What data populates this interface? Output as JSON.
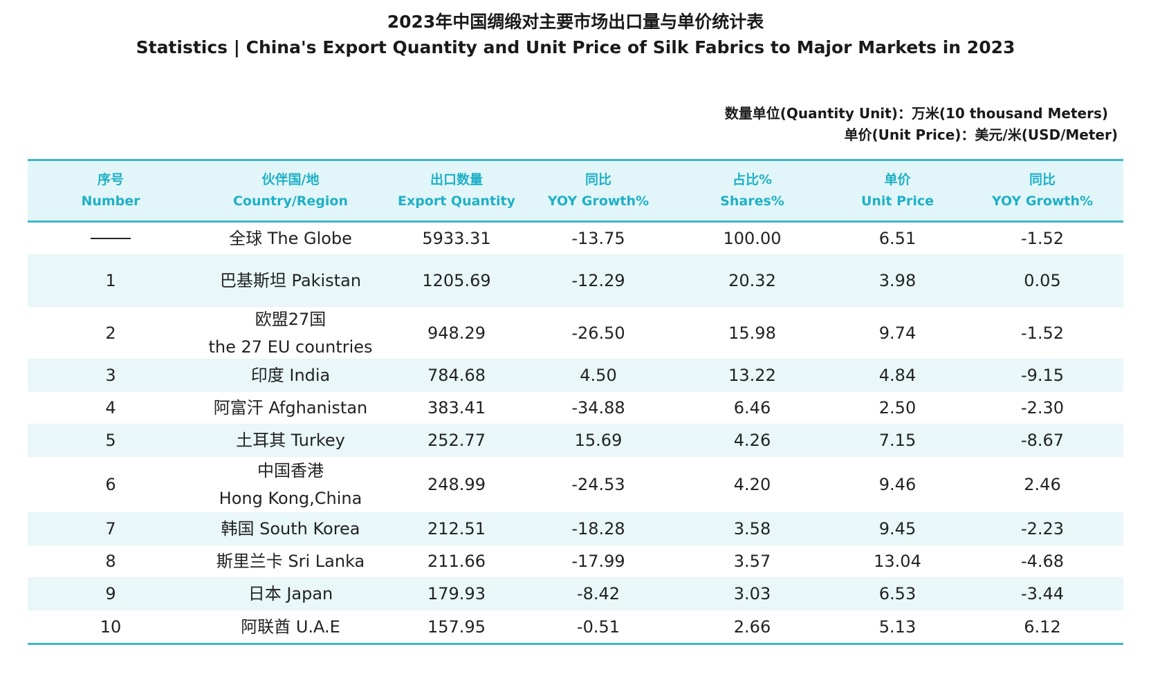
{
  "title": {
    "cn": "2023年中国绸缎对主要市场出口量与单价统计表",
    "en": "Statistics | China's Export Quantity and Unit Price of Silk Fabrics to Major Markets in 2023"
  },
  "units": {
    "quantity": "数量单位(Quantity Unit)：万米(10 thousand Meters)",
    "price": "单价(Unit Price)：美元/米(USD/Meter)"
  },
  "headers": [
    {
      "cn": "序号",
      "en": "Number"
    },
    {
      "cn": "伙伴国/地",
      "en": "Country/Region"
    },
    {
      "cn": "出口数量",
      "en": "Export Quantity"
    },
    {
      "cn": "同比",
      "en": "YOY Growth%"
    },
    {
      "cn": "占比%",
      "en": "Shares%"
    },
    {
      "cn": "单价",
      "en": "Unit Price"
    },
    {
      "cn": "同比",
      "en": "YOY Growth%"
    }
  ],
  "rows": [
    {
      "number": "",
      "region_l1": "全球 The Globe",
      "region_l2": "",
      "quantity": "5933.31",
      "qty_yoy": "-13.75",
      "share": "100.00",
      "price": "6.51",
      "price_yoy": "-1.52"
    },
    {
      "number": "1",
      "region_l1": "巴基斯坦 Pakistan",
      "region_l2": "",
      "quantity": "1205.69",
      "qty_yoy": "-12.29",
      "share": "20.32",
      "price": "3.98",
      "price_yoy": "0.05"
    },
    {
      "number": "2",
      "region_l1": "欧盟27国",
      "region_l2": "the 27 EU countries",
      "quantity": "948.29",
      "qty_yoy": "-26.50",
      "share": "15.98",
      "price": "9.74",
      "price_yoy": "-1.52"
    },
    {
      "number": "3",
      "region_l1": "印度 India",
      "region_l2": "",
      "quantity": "784.68",
      "qty_yoy": "4.50",
      "share": "13.22",
      "price": "4.84",
      "price_yoy": "-9.15"
    },
    {
      "number": "4",
      "region_l1": "阿富汗 Afghanistan",
      "region_l2": "",
      "quantity": "383.41",
      "qty_yoy": "-34.88",
      "share": "6.46",
      "price": "2.50",
      "price_yoy": "-2.30"
    },
    {
      "number": "5",
      "region_l1": "土耳其 Turkey",
      "region_l2": "",
      "quantity": "252.77",
      "qty_yoy": "15.69",
      "share": "4.26",
      "price": "7.15",
      "price_yoy": "-8.67"
    },
    {
      "number": "6",
      "region_l1": "中国香港",
      "region_l2": "Hong Kong,China",
      "quantity": "248.99",
      "qty_yoy": "-24.53",
      "share": "4.20",
      "price": "9.46",
      "price_yoy": "2.46"
    },
    {
      "number": "7",
      "region_l1": "韩国 South Korea",
      "region_l2": "",
      "quantity": "212.51",
      "qty_yoy": "-18.28",
      "share": "3.58",
      "price": "9.45",
      "price_yoy": "-2.23"
    },
    {
      "number": "8",
      "region_l1": "斯里兰卡 Sri Lanka",
      "region_l2": "",
      "quantity": "211.66",
      "qty_yoy": "-17.99",
      "share": "3.57",
      "price": "13.04",
      "price_yoy": "-4.68"
    },
    {
      "number": "9",
      "region_l1": "日本 Japan",
      "region_l2": "",
      "quantity": "179.93",
      "qty_yoy": "-8.42",
      "share": "3.03",
      "price": "6.53",
      "price_yoy": "-3.44"
    },
    {
      "number": "10",
      "region_l1": "阿联酋 U.A.E",
      "region_l2": "",
      "quantity": "157.95",
      "qty_yoy": "-0.51",
      "share": "2.66",
      "price": "5.13",
      "price_yoy": "6.12"
    }
  ]
}
